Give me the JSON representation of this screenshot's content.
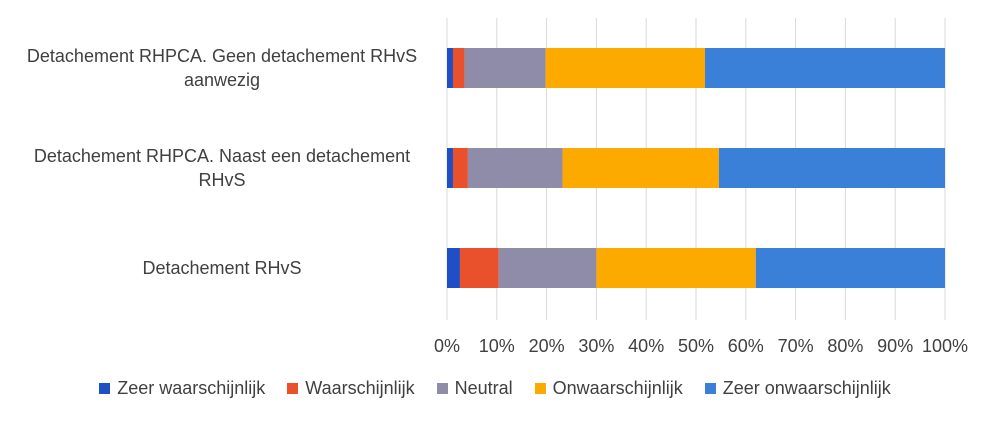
{
  "chart_data": {
    "type": "bar",
    "orientation": "horizontal",
    "stacked": "percent",
    "categories": [
      "Detachement RHPCA. Geen detachement RHvS aanwezig",
      "Detachement RHPCA.  Naast een detachement RHvS",
      "Detachement RHvS"
    ],
    "category_lines": [
      [
        "Detachement RHPCA. Geen detachement RHvS",
        "aanwezig"
      ],
      [
        "Detachement RHPCA.  Naast een detachement",
        "RHvS"
      ],
      [
        "Detachement RHvS"
      ]
    ],
    "series": [
      {
        "name": "Zeer waarschijnlijk",
        "color": "#1f4fc4",
        "values": [
          1.2,
          1.2,
          2.6
        ]
      },
      {
        "name": "Waarschijnlijk",
        "color": "#e8512c",
        "values": [
          2.3,
          3.0,
          7.8
        ]
      },
      {
        "name": "Neutral",
        "color": "#8e8ca8",
        "values": [
          16.3,
          19.0,
          19.6
        ]
      },
      {
        "name": "Onwaarschijnlijk",
        "color": "#fdaa00",
        "values": [
          32.0,
          31.4,
          32.0
        ]
      },
      {
        "name": "Zeer onwaarschijnlijk",
        "color": "#3a7fd8",
        "values": [
          48.2,
          45.4,
          38.0
        ]
      }
    ],
    "xaxis": {
      "ticks": [
        "0%",
        "10%",
        "20%",
        "30%",
        "40%",
        "50%",
        "60%",
        "70%",
        "80%",
        "90%",
        "100%"
      ],
      "range": [
        0,
        100
      ]
    },
    "grid": true,
    "legend_position": "bottom"
  }
}
